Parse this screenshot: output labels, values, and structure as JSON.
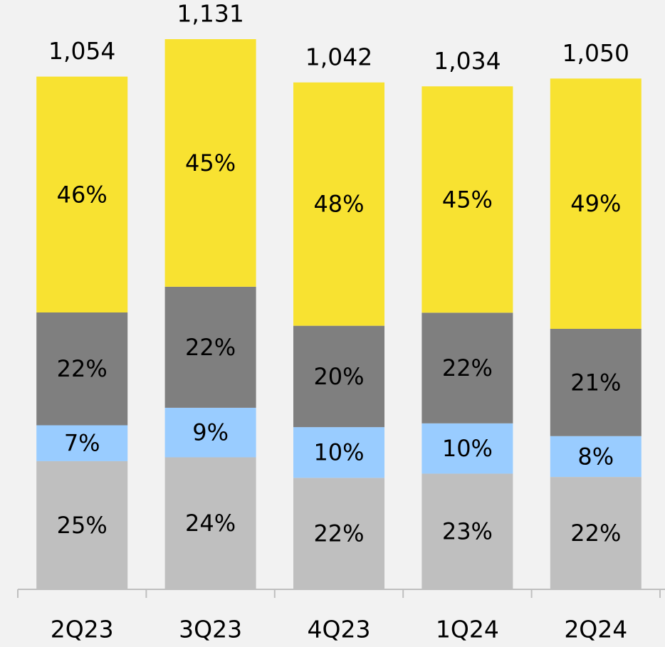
{
  "chart_data": {
    "type": "bar",
    "stacked": true,
    "categories": [
      "2Q23",
      "3Q23",
      "4Q23",
      "1Q24",
      "2Q24"
    ],
    "totals": {
      "values": [
        1054,
        1131,
        1042,
        1034,
        1050
      ],
      "value_labels": [
        "1,054",
        "1,131",
        "1,042",
        "1,034",
        "1,050"
      ]
    },
    "series": [
      {
        "color": "#bfbfbf",
        "values": [
          25,
          24,
          22,
          23,
          22
        ],
        "value_labels": [
          "25%",
          "24%",
          "22%",
          "23%",
          "22%"
        ]
      },
      {
        "color": "#99ccff",
        "values": [
          7,
          9,
          10,
          10,
          8
        ],
        "value_labels": [
          "7%",
          "9%",
          "10%",
          "10%",
          "8%"
        ]
      },
      {
        "color": "#7f7f7f",
        "values": [
          22,
          22,
          20,
          22,
          21
        ],
        "value_labels": [
          "22%",
          "22%",
          "20%",
          "22%",
          "21%"
        ]
      },
      {
        "color": "#f8e231",
        "values": [
          46,
          45,
          48,
          45,
          49
        ],
        "value_labels": [
          "46%",
          "45%",
          "48%",
          "45%",
          "49%"
        ]
      }
    ]
  }
}
